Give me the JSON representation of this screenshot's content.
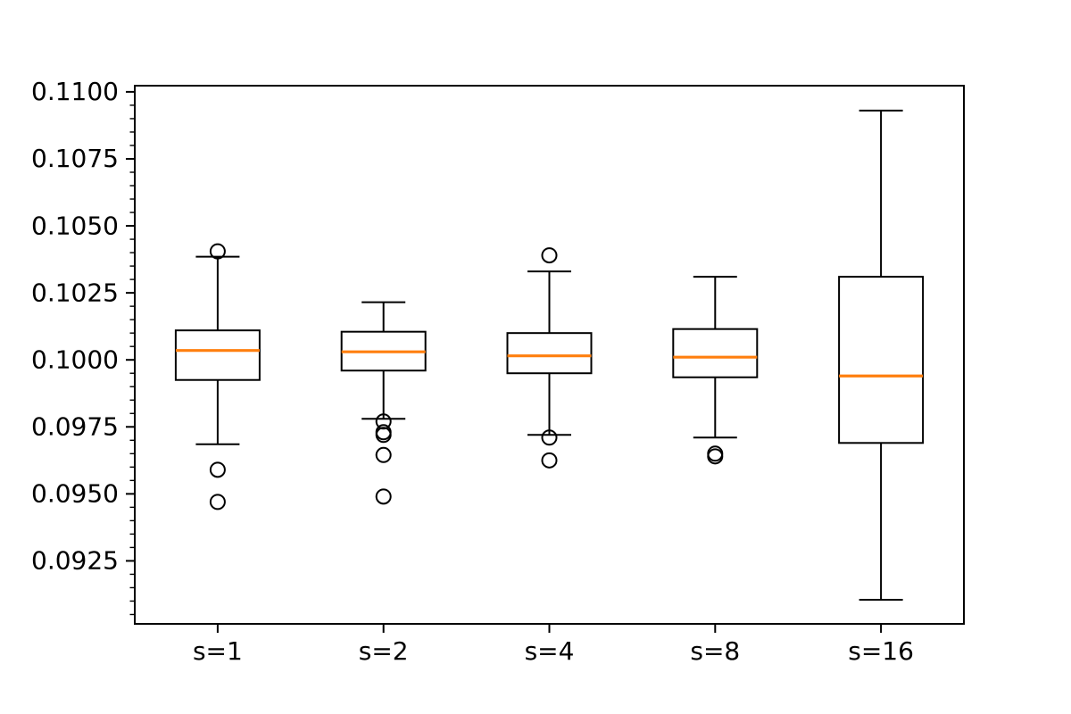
{
  "figure": {
    "background": "#ffffff"
  },
  "chart_data": {
    "type": "boxplot",
    "title": "",
    "xlabel": "",
    "ylabel": "",
    "grid": false,
    "legend": null,
    "categories": [
      "s=1",
      "s=2",
      "s=4",
      "s=8",
      "s=16"
    ],
    "ylim": [
      0.09015,
      0.11023
    ],
    "yticks": {
      "major_values": [
        0.0925,
        0.095,
        0.0975,
        0.1,
        0.1025,
        0.105,
        0.1075,
        0.11
      ],
      "major_labels": [
        "0.0925",
        "0.0950",
        "0.0975",
        "0.1000",
        "0.1025",
        "0.1050",
        "0.1075",
        "0.1100"
      ],
      "minor_step": 0.0005
    },
    "colors": {
      "line": "#000000",
      "median": "#ff7f0e",
      "background": "#ffffff"
    },
    "series": [
      {
        "label": "s=1",
        "whislo": 0.09685,
        "q1": 0.09925,
        "med": 0.10035,
        "q3": 0.1011,
        "whishi": 0.10385,
        "fliers": [
          0.10405,
          0.0959,
          0.0947
        ]
      },
      {
        "label": "s=2",
        "whislo": 0.0978,
        "q1": 0.0996,
        "med": 0.1003,
        "q3": 0.10105,
        "whishi": 0.10215,
        "fliers": [
          0.0977,
          0.0973,
          0.0972,
          0.09645,
          0.0949
        ]
      },
      {
        "label": "s=4",
        "whislo": 0.0972,
        "q1": 0.0995,
        "med": 0.10015,
        "q3": 0.101,
        "whishi": 0.1033,
        "fliers": [
          0.1039,
          0.0971,
          0.09625
        ]
      },
      {
        "label": "s=8",
        "whislo": 0.0971,
        "q1": 0.09935,
        "med": 0.1001,
        "q3": 0.10115,
        "whishi": 0.1031,
        "fliers": [
          0.0965,
          0.0964
        ]
      },
      {
        "label": "s=16",
        "whislo": 0.09105,
        "q1": 0.0969,
        "med": 0.0994,
        "q3": 0.1031,
        "whishi": 0.1093,
        "fliers": []
      }
    ]
  }
}
